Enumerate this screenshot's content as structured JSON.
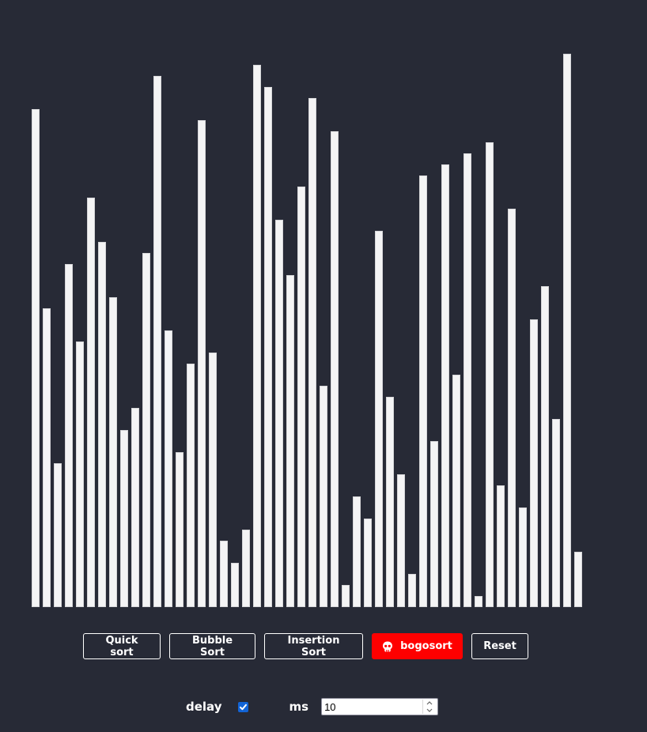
{
  "visualizer": {
    "values": [
      45,
      27,
      13,
      31,
      24,
      37,
      33,
      28,
      16,
      18,
      32,
      48,
      25,
      14,
      22,
      44,
      23,
      6,
      4,
      7,
      49,
      47,
      35,
      30,
      38,
      46,
      20,
      43,
      2,
      10,
      8,
      34,
      19,
      12,
      3,
      39,
      15,
      40,
      21,
      41,
      1,
      42,
      11,
      36,
      9,
      26,
      29,
      17,
      50,
      5
    ],
    "max_value": 50,
    "bar_color": "#f4f4f5",
    "background_color": "#272a36"
  },
  "controls": {
    "quick_sort": "Quick sort",
    "bubble_sort": "Bubble Sort",
    "insertion_sort": "Insertion Sort",
    "bogosort": "bogosort",
    "bogosort_icon": "skull-icon",
    "bogosort_color": "#ff0000",
    "reset": "Reset"
  },
  "delay": {
    "label": "delay",
    "checked": true,
    "unit_label": "ms",
    "value": "10"
  }
}
